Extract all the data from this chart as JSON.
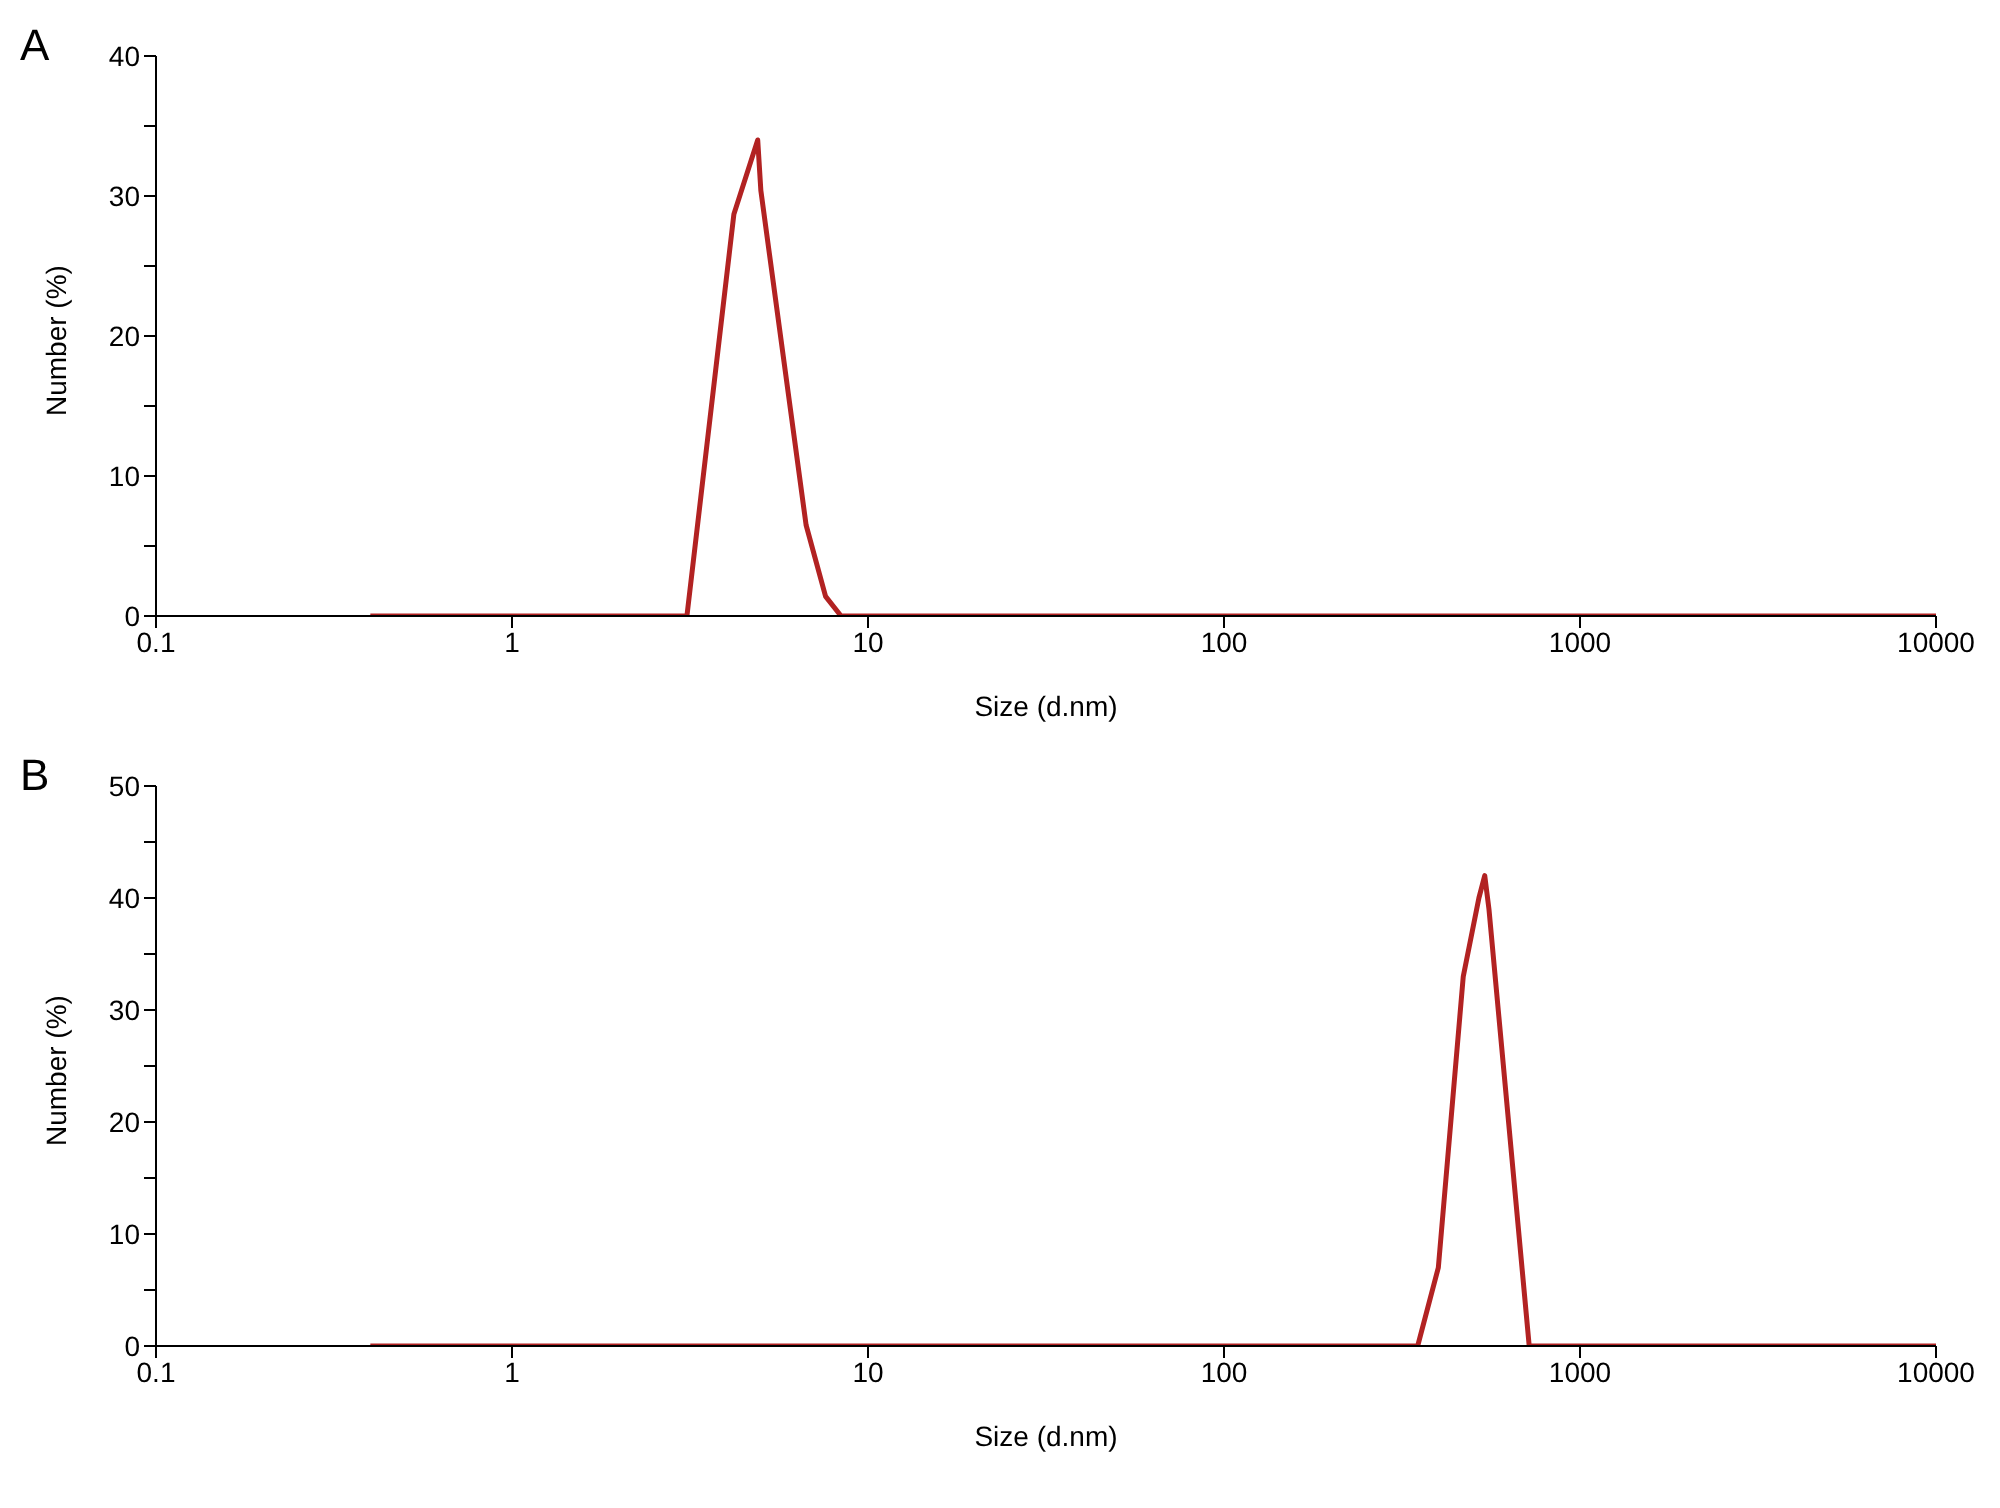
{
  "chart_data": [
    {
      "type": "line",
      "title": "A",
      "xlabel": "Size (d.nm)",
      "ylabel": "Number (%)",
      "log": "x",
      "marker": "none",
      "line_style": "solid",
      "xlim": [
        0.1,
        10000
      ],
      "xticks": [
        0.1,
        1,
        10,
        100,
        1000,
        10000
      ],
      "ylim": [
        0,
        40
      ],
      "yticks": [
        0,
        {
          "value": 5,
          "label": null
        },
        10,
        {
          "value": 15,
          "label": null
        },
        20,
        {
          "value": 25,
          "label": null
        },
        30,
        {
          "value": 35,
          "label": null
        },
        40
      ],
      "series": [
        {
          "color": "#b22222",
          "x": [
            0.4,
            3.1,
            4.2,
            4.9,
            5.0,
            6.7,
            7.6,
            8.4,
            10000
          ],
          "values": [
            0,
            0,
            28.7,
            34,
            30.4,
            6.5,
            1.4,
            0,
            0
          ]
        }
      ]
    },
    {
      "type": "line",
      "title": "B",
      "xlabel": "Size (d.nm)",
      "ylabel": "Number (%)",
      "log": "x",
      "marker": "none",
      "line_style": "solid",
      "xlim": [
        0.1,
        10000
      ],
      "xticks": [
        0.1,
        1,
        10,
        100,
        1000,
        10000
      ],
      "ylim": [
        0,
        50
      ],
      "yticks": [
        0,
        {
          "value": 5,
          "label": null
        },
        10,
        {
          "value": 15,
          "label": null
        },
        20,
        {
          "value": 25,
          "label": null
        },
        30,
        {
          "value": 35,
          "label": null
        },
        40,
        {
          "value": 45,
          "label": null
        },
        50
      ],
      "series": [
        {
          "color": "#b22222",
          "x": [
            0.4,
            350,
            400,
            470,
            520,
            540,
            555,
            720,
            10000
          ],
          "values": [
            0,
            0,
            7,
            33,
            40,
            42,
            39,
            0,
            0
          ]
        }
      ]
    }
  ]
}
